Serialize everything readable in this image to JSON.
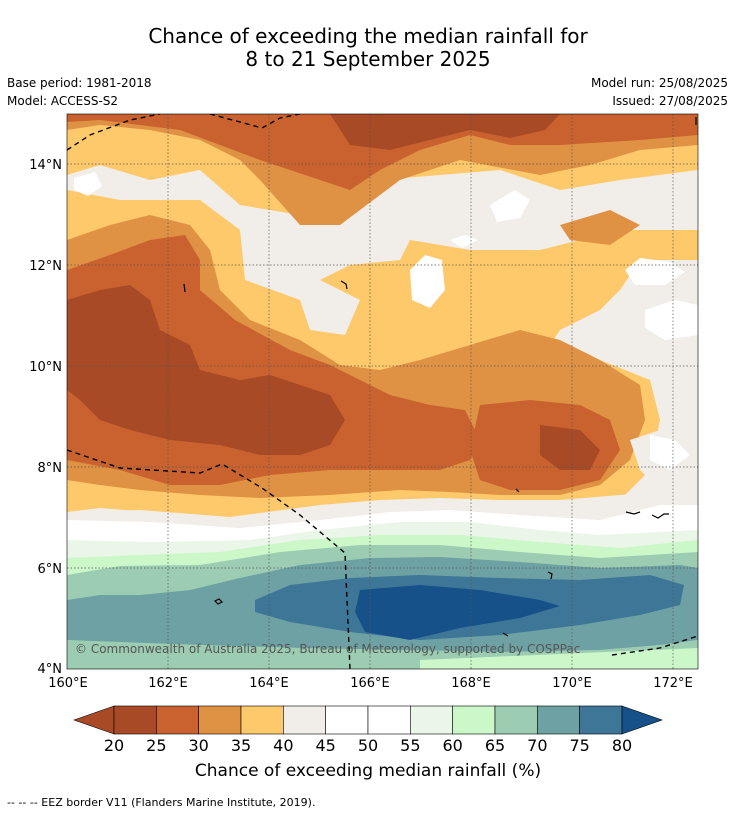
{
  "title_line1": "Chance of exceeding the median rainfall for",
  "title_line2": "8 to 21 September 2025",
  "base_period": "Base period: 1981-2018",
  "model": "Model: ACCESS-S2",
  "model_run": "Model run: 25/08/2025",
  "issued": "Issued: 27/08/2025",
  "map": {
    "lon_range": [
      160,
      172.5
    ],
    "lat_range": [
      4,
      15
    ],
    "lon_ticks": [
      "160°E",
      "162°E",
      "164°E",
      "166°E",
      "168°E",
      "170°E",
      "172°E"
    ],
    "lat_ticks": [
      "14°N",
      "12°N",
      "10°N",
      "8°N",
      "6°N",
      "4°N"
    ],
    "grid": "dotted",
    "copyright": "© Commonwealth of Australia 2025, Bureau of Meteorology, supported by COSPPac"
  },
  "colorbar": {
    "title": "Chance of exceeding median rainfall (%)",
    "ticks": [
      "20",
      "25",
      "30",
      "35",
      "40",
      "45",
      "50",
      "55",
      "60",
      "65",
      "70",
      "75",
      "80"
    ],
    "colors": [
      "#a84a26",
      "#c9622f",
      "#e09244",
      "#fdc96b",
      "#f1ede8",
      "#ffffff",
      "#ffffff",
      "#eaf6e8",
      "#cbf7c9",
      "#9ccdb2",
      "#6ea1a3",
      "#3e7698"
    ],
    "under_color": "#a84a26",
    "over_color": "#16518a"
  },
  "footer": "-- -- -- EEZ border V11 (Flanders Marine Institute, 2019)."
}
